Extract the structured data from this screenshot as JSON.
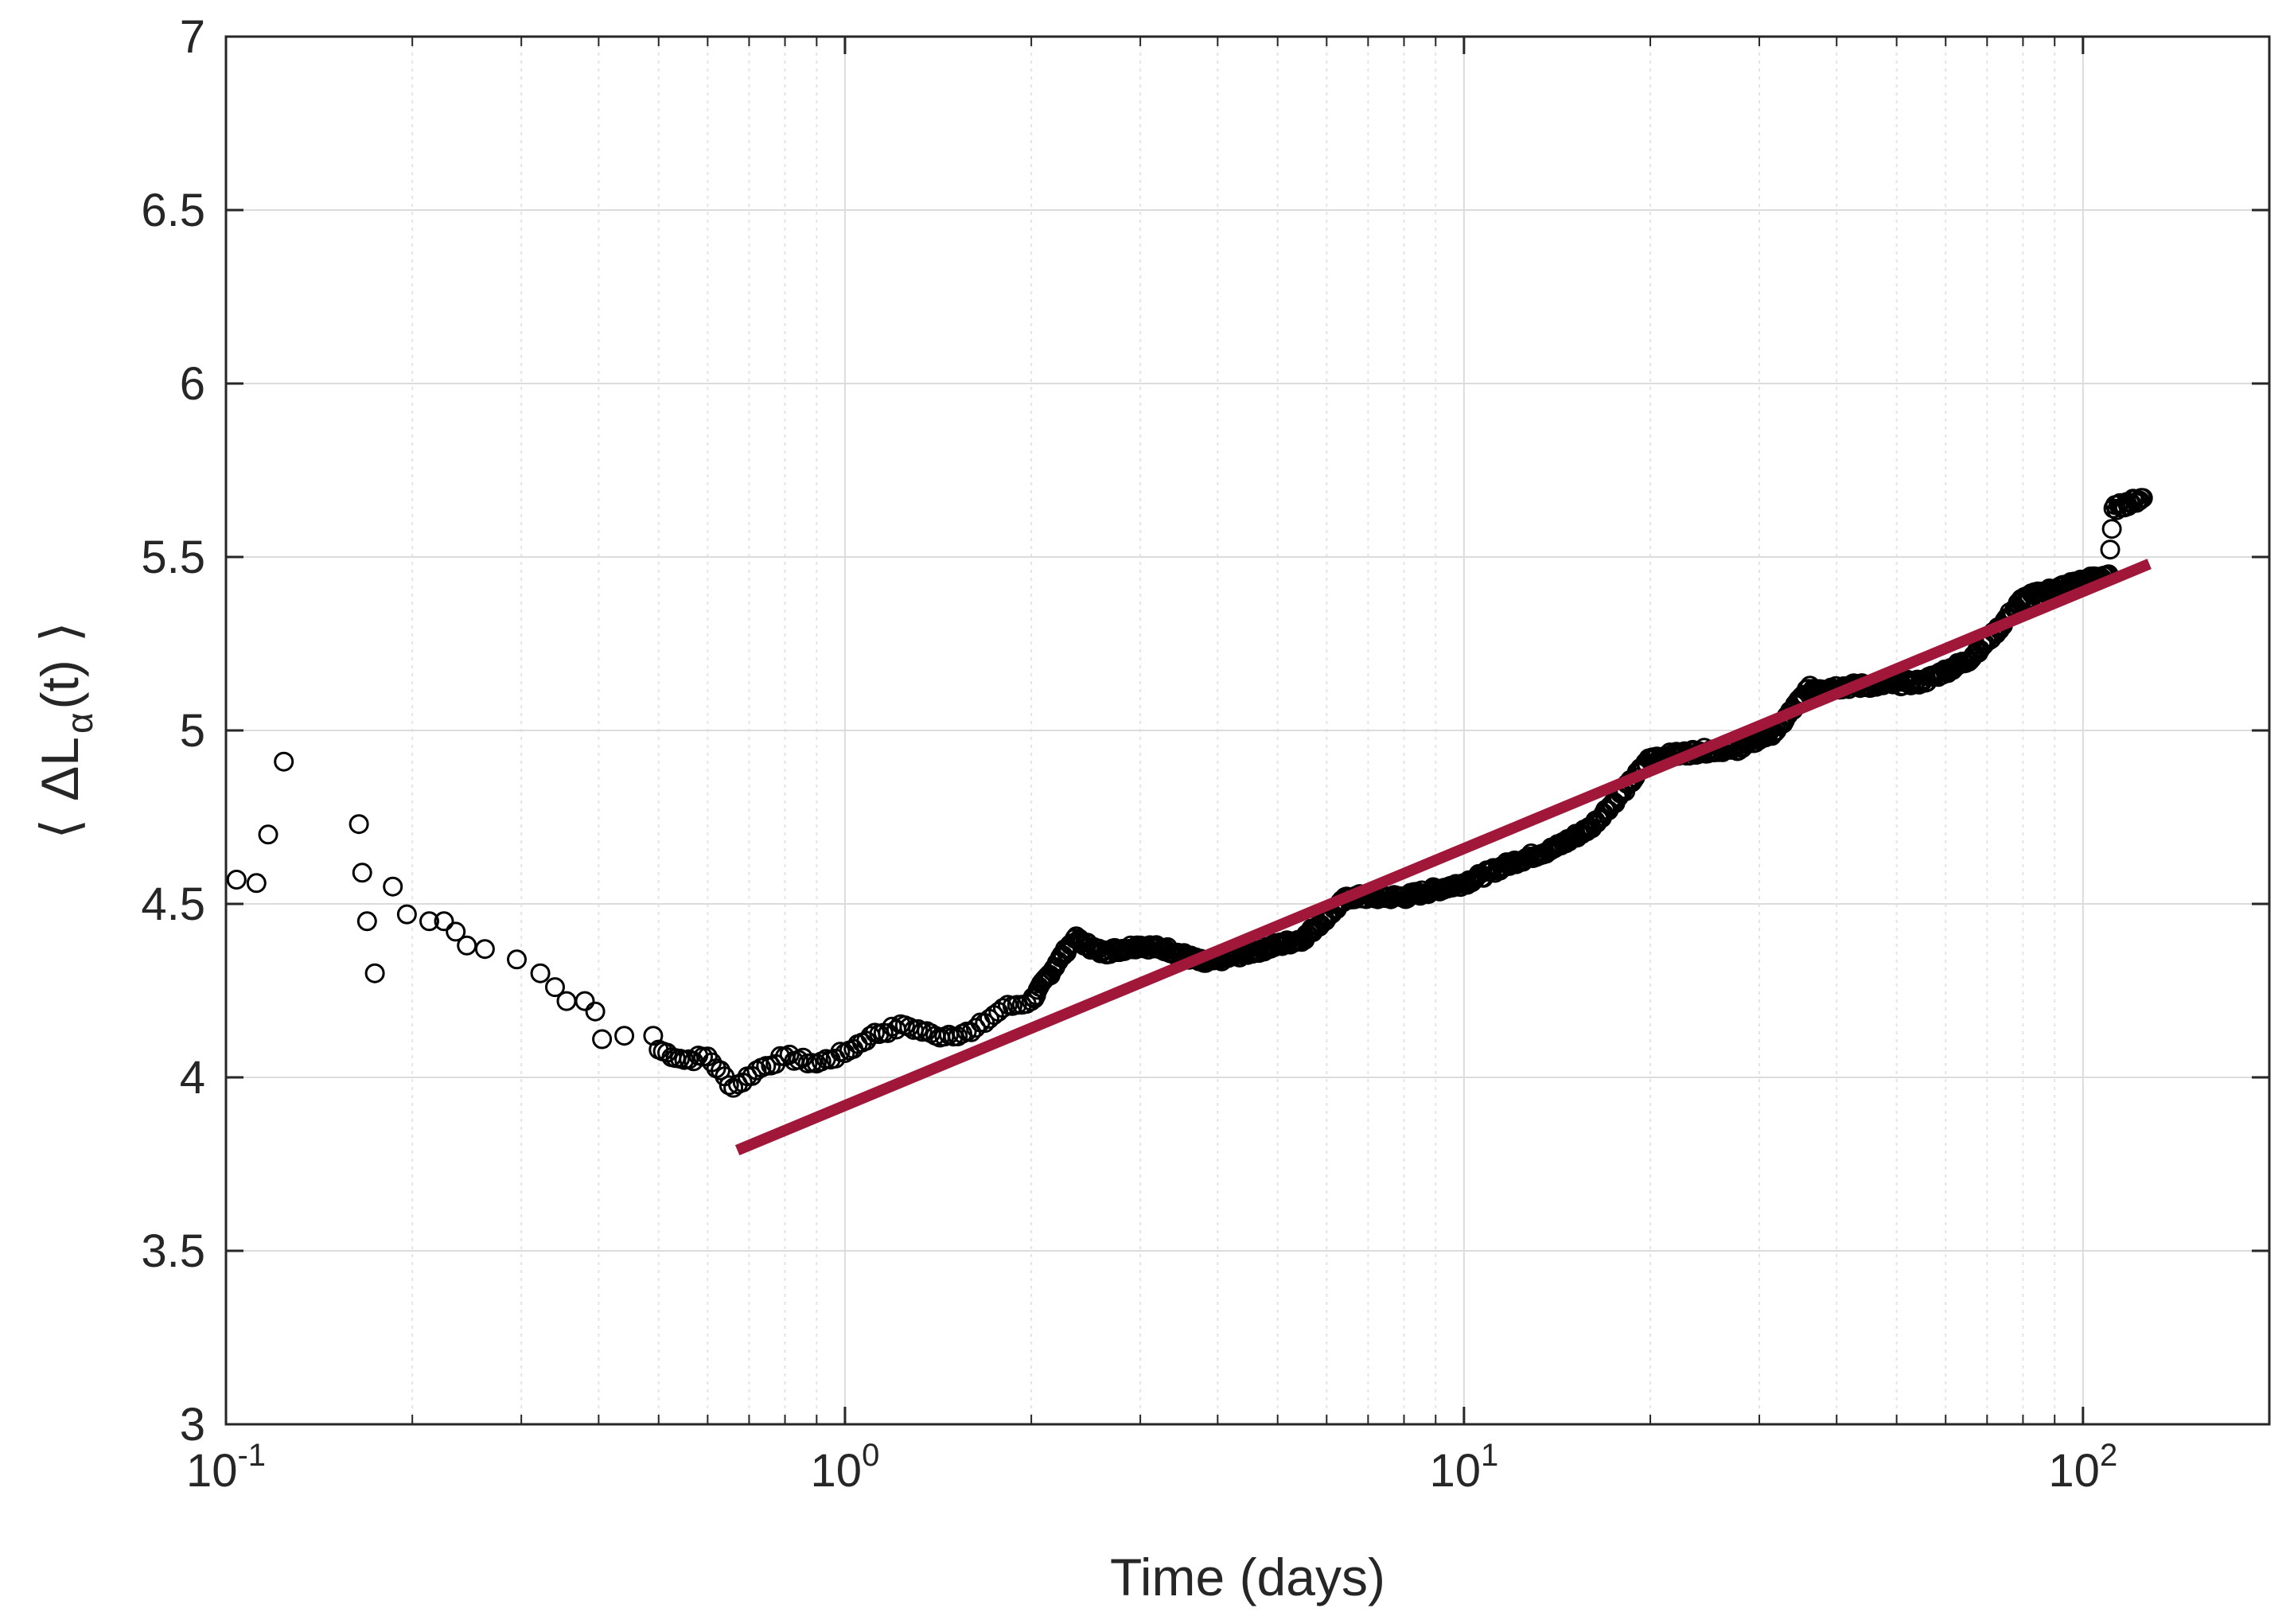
{
  "chart_data": {
    "type": "scatter",
    "title": "",
    "xlabel": "Time (days)",
    "ylabel": {
      "open_bracket": "⟨",
      "symbol": "ΔL",
      "subscript": "α",
      "argument": "(t)",
      "close_bracket": "⟩"
    },
    "xscale": "log",
    "xlim": [
      0.1,
      200
    ],
    "ylim": [
      3,
      7
    ],
    "grid": true,
    "minor_grid": true,
    "x_ticks": [
      {
        "value": 0.1,
        "base": "10",
        "exp": "-1"
      },
      {
        "value": 1,
        "base": "10",
        "exp": "0"
      },
      {
        "value": 10,
        "base": "10",
        "exp": "1"
      },
      {
        "value": 100,
        "base": "10",
        "exp": "2"
      }
    ],
    "y_ticks": [
      {
        "value": 3,
        "label": "3"
      },
      {
        "value": 3.5,
        "label": "3.5"
      },
      {
        "value": 4,
        "label": "4"
      },
      {
        "value": 4.5,
        "label": "4.5"
      },
      {
        "value": 5,
        "label": "5"
      },
      {
        "value": 5.5,
        "label": "5.5"
      },
      {
        "value": 6,
        "label": "6"
      },
      {
        "value": 6.5,
        "label": "6.5"
      },
      {
        "value": 7,
        "label": "7"
      }
    ],
    "marker_color": "#000000",
    "fit_color": "#A0173A",
    "series": [
      {
        "type": "scatter",
        "marker": "open-circle",
        "control_points": [
          [
            0.104,
            4.57
          ],
          [
            0.112,
            4.56
          ],
          [
            0.117,
            4.7
          ],
          [
            0.124,
            4.91
          ],
          [
            0.164,
            4.73
          ],
          [
            0.166,
            4.59
          ],
          [
            0.169,
            4.45
          ],
          [
            0.174,
            4.3
          ],
          [
            0.186,
            4.55
          ],
          [
            0.196,
            4.47
          ],
          [
            0.213,
            4.45
          ],
          [
            0.225,
            4.45
          ],
          [
            0.235,
            4.42
          ],
          [
            0.245,
            4.38
          ],
          [
            0.262,
            4.37
          ],
          [
            0.295,
            4.34
          ],
          [
            0.322,
            4.3
          ],
          [
            0.34,
            4.26
          ],
          [
            0.355,
            4.22
          ],
          [
            0.38,
            4.22
          ],
          [
            0.395,
            4.19
          ],
          [
            0.405,
            4.11
          ],
          [
            0.44,
            4.12
          ],
          [
            0.49,
            4.12
          ],
          [
            0.5,
            4.08
          ],
          [
            0.55,
            4.05
          ],
          [
            0.6,
            4.06
          ],
          [
            0.66,
            3.97
          ],
          [
            0.72,
            4.02
          ],
          [
            0.8,
            4.06
          ],
          [
            0.9,
            4.04
          ],
          [
            1.0,
            4.07
          ],
          [
            1.1,
            4.12
          ],
          [
            1.25,
            4.15
          ],
          [
            1.4,
            4.12
          ],
          [
            1.6,
            4.13
          ],
          [
            1.8,
            4.2
          ],
          [
            2.0,
            4.22
          ],
          [
            2.2,
            4.33
          ],
          [
            2.35,
            4.4
          ],
          [
            2.6,
            4.36
          ],
          [
            3.0,
            4.38
          ],
          [
            3.3,
            4.37
          ],
          [
            3.8,
            4.33
          ],
          [
            4.5,
            4.36
          ],
          [
            5.5,
            4.4
          ],
          [
            6.5,
            4.52
          ],
          [
            8.0,
            4.52
          ],
          [
            10.0,
            4.56
          ],
          [
            12.0,
            4.62
          ],
          [
            14.0,
            4.66
          ],
          [
            16.0,
            4.72
          ],
          [
            18.0,
            4.82
          ],
          [
            20.0,
            4.92
          ],
          [
            24.0,
            4.94
          ],
          [
            28.0,
            4.95
          ],
          [
            32.0,
            5.0
          ],
          [
            36.0,
            5.12
          ],
          [
            45.0,
            5.13
          ],
          [
            55.0,
            5.14
          ],
          [
            65.0,
            5.2
          ],
          [
            72.0,
            5.28
          ],
          [
            80.0,
            5.38
          ],
          [
            95.0,
            5.42
          ],
          [
            110.0,
            5.45
          ],
          [
            112.0,
            5.64
          ],
          [
            125.0,
            5.67
          ]
        ]
      },
      {
        "type": "line",
        "points": [
          [
            0.67,
            3.79
          ],
          [
            128.0,
            5.48
          ]
        ]
      }
    ]
  }
}
